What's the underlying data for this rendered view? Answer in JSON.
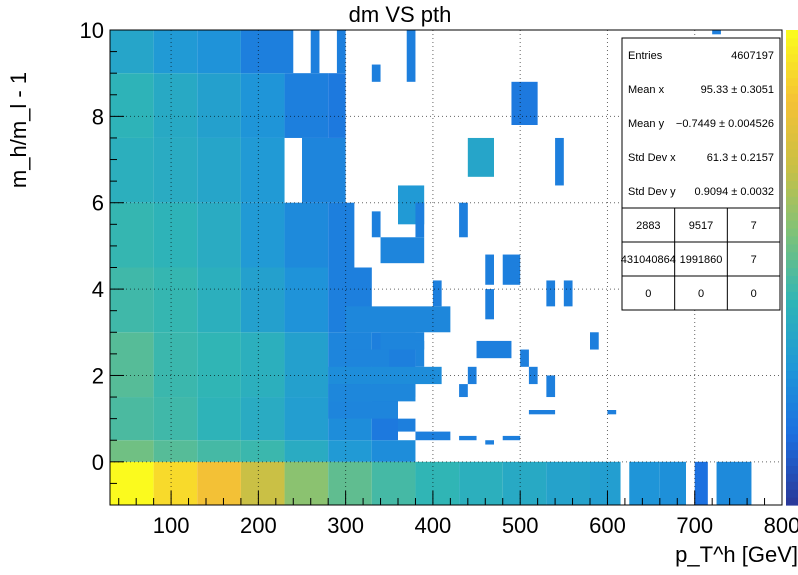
{
  "chart_data": {
    "type": "heatmap",
    "title": "dm VS pth",
    "xlabel": "p_T^h [GeV]",
    "ylabel": "m_h/m_l - 1",
    "xlim": [
      30,
      800
    ],
    "ylim": [
      -1,
      10
    ],
    "x_ticks": [
      100,
      200,
      300,
      400,
      500,
      600,
      700,
      800
    ],
    "y_ticks": [
      0,
      2,
      4,
      6,
      8,
      10
    ],
    "grid": true,
    "colorbar": "right",
    "colormap": [
      "#2a3a9b",
      "#1c6fe0",
      "#1f97d8",
      "#2fb5b6",
      "#7cc27a",
      "#c8c046",
      "#f5c135",
      "#fbfa1e"
    ],
    "cells": [
      [
        30,
        -1,
        80,
        0,
        1.0
      ],
      [
        80,
        -1,
        130,
        0,
        0.92
      ],
      [
        130,
        -1,
        180,
        0,
        0.85
      ],
      [
        180,
        -1,
        230,
        0,
        0.72
      ],
      [
        230,
        -1,
        280,
        0,
        0.6
      ],
      [
        280,
        -1,
        330,
        0,
        0.52
      ],
      [
        330,
        -1,
        380,
        0,
        0.47
      ],
      [
        380,
        -1,
        430,
        0,
        0.43
      ],
      [
        430,
        -1,
        480,
        0,
        0.4
      ],
      [
        480,
        -1,
        530,
        0,
        0.37
      ],
      [
        530,
        -1,
        580,
        0,
        0.34
      ],
      [
        580,
        -1,
        615,
        0,
        0.32
      ],
      [
        625,
        -1,
        660,
        0,
        0.28
      ],
      [
        660,
        -1,
        690,
        0,
        0.26
      ],
      [
        700,
        -1,
        715,
        0,
        0.15
      ],
      [
        725,
        -1,
        765,
        0,
        0.24
      ],
      [
        30,
        0,
        80,
        0.5,
        0.55
      ],
      [
        80,
        0,
        130,
        0.5,
        0.5
      ],
      [
        130,
        0,
        180,
        0.5,
        0.47
      ],
      [
        180,
        0,
        230,
        0.5,
        0.45
      ],
      [
        230,
        0,
        280,
        0.5,
        0.38
      ],
      [
        280,
        0,
        330,
        0.5,
        0.3
      ],
      [
        330,
        0,
        380,
        0.5,
        0.25
      ],
      [
        30,
        0.5,
        80,
        1.5,
        0.48
      ],
      [
        80,
        0.5,
        130,
        1.5,
        0.46
      ],
      [
        130,
        0.5,
        180,
        1.5,
        0.42
      ],
      [
        180,
        0.5,
        230,
        1.5,
        0.38
      ],
      [
        230,
        0.5,
        280,
        1.5,
        0.32
      ],
      [
        280,
        0.5,
        330,
        1.5,
        0.25
      ],
      [
        330,
        0.5,
        360,
        1.5,
        0.18
      ],
      [
        30,
        1.5,
        80,
        3,
        0.5
      ],
      [
        80,
        1.5,
        130,
        3,
        0.45
      ],
      [
        130,
        1.5,
        180,
        3,
        0.43
      ],
      [
        180,
        1.5,
        230,
        3,
        0.4
      ],
      [
        230,
        1.5,
        280,
        3,
        0.33
      ],
      [
        280,
        1.5,
        330,
        3,
        0.22
      ],
      [
        330,
        1.5,
        380,
        3,
        0.2
      ],
      [
        30,
        3,
        80,
        4.5,
        0.46
      ],
      [
        80,
        3,
        130,
        4.5,
        0.44
      ],
      [
        130,
        3,
        180,
        4.5,
        0.4
      ],
      [
        180,
        3,
        230,
        4.5,
        0.33
      ],
      [
        230,
        3,
        280,
        4.5,
        0.27
      ],
      [
        280,
        3,
        330,
        4.5,
        0.2
      ],
      [
        30,
        4.5,
        80,
        6,
        0.44
      ],
      [
        80,
        4.5,
        130,
        6,
        0.42
      ],
      [
        130,
        4.5,
        180,
        6,
        0.38
      ],
      [
        180,
        4.5,
        230,
        6,
        0.3
      ],
      [
        230,
        4.5,
        280,
        6,
        0.24
      ],
      [
        280,
        4.5,
        310,
        6,
        0.2
      ],
      [
        30,
        6,
        80,
        7.5,
        0.4
      ],
      [
        80,
        6,
        130,
        7.5,
        0.38
      ],
      [
        130,
        6,
        180,
        7.5,
        0.35
      ],
      [
        180,
        6,
        230,
        7.5,
        0.3
      ],
      [
        250,
        6,
        300,
        7.5,
        0.22
      ],
      [
        30,
        7.5,
        80,
        9,
        0.42
      ],
      [
        80,
        7.5,
        130,
        9,
        0.37
      ],
      [
        130,
        7.5,
        180,
        9,
        0.33
      ],
      [
        180,
        7.5,
        230,
        9,
        0.28
      ],
      [
        230,
        7.5,
        280,
        9,
        0.2
      ],
      [
        280,
        7.5,
        300,
        9,
        0.18
      ],
      [
        30,
        9,
        80,
        10,
        0.35
      ],
      [
        80,
        9,
        130,
        10,
        0.3
      ],
      [
        130,
        9,
        180,
        10,
        0.27
      ],
      [
        180,
        9,
        240,
        10,
        0.2
      ],
      [
        260,
        9,
        270,
        10,
        0.2
      ],
      [
        290,
        9,
        300,
        10,
        0.2
      ],
      [
        370,
        8.8,
        380,
        10,
        0.2
      ],
      [
        330,
        8.8,
        340,
        9.2,
        0.2
      ],
      [
        490,
        7.8,
        520,
        8.8,
        0.18
      ],
      [
        440,
        6.6,
        470,
        7.5,
        0.35
      ],
      [
        540,
        6.4,
        550,
        7.5,
        0.2
      ],
      [
        360,
        5.5,
        390,
        6.4,
        0.3
      ],
      [
        380,
        5.2,
        390,
        6,
        0.2
      ],
      [
        430,
        5.2,
        440,
        6,
        0.2
      ],
      [
        330,
        5.2,
        340,
        5.8,
        0.2
      ],
      [
        340,
        4.6,
        390,
        5.2,
        0.22
      ],
      [
        460,
        4.1,
        470,
        4.8,
        0.2
      ],
      [
        480,
        4.1,
        500,
        4.8,
        0.2
      ],
      [
        530,
        3.6,
        540,
        4.2,
        0.2
      ],
      [
        550,
        3.6,
        560,
        4.2,
        0.2
      ],
      [
        400,
        3.6,
        410,
        4.2,
        0.2
      ],
      [
        460,
        3.3,
        470,
        4,
        0.2
      ],
      [
        300,
        3,
        420,
        3.6,
        0.23
      ],
      [
        340,
        2.6,
        390,
        3,
        0.22
      ],
      [
        580,
        2.6,
        590,
        3,
        0.2
      ],
      [
        300,
        2.2,
        350,
        2.6,
        0.22
      ],
      [
        380,
        2.2,
        390,
        2.8,
        0.22
      ],
      [
        450,
        2.4,
        490,
        2.8,
        0.2
      ],
      [
        500,
        2.2,
        510,
        2.6,
        0.2
      ],
      [
        280,
        1.8,
        410,
        2.2,
        0.25
      ],
      [
        440,
        1.8,
        450,
        2.2,
        0.2
      ],
      [
        510,
        1.8,
        520,
        2.2,
        0.2
      ],
      [
        530,
        1.5,
        540,
        2,
        0.2
      ],
      [
        280,
        1.4,
        380,
        1.8,
        0.23
      ],
      [
        430,
        1.5,
        440,
        1.8,
        0.2
      ],
      [
        280,
        1,
        360,
        1.4,
        0.22
      ],
      [
        360,
        0.7,
        380,
        1,
        0.2
      ],
      [
        510,
        1.1,
        540,
        1.2,
        0.2
      ],
      [
        600,
        1.1,
        610,
        1.2,
        0.2
      ],
      [
        380,
        0.5,
        420,
        0.7,
        0.2
      ],
      [
        430,
        0.5,
        450,
        0.6,
        0.2
      ],
      [
        460,
        0.4,
        470,
        0.5,
        0.2
      ],
      [
        480,
        0.5,
        500,
        0.6,
        0.2
      ],
      [
        720,
        9.9,
        730,
        10,
        0.2
      ]
    ],
    "stats_box": {
      "rows": [
        {
          "label": "Entries",
          "value": "4607197"
        },
        {
          "label": "Mean x",
          "value": "95.33 ± 0.3051"
        },
        {
          "label": "Mean y",
          "value": "−0.7449 ± 0.004526"
        },
        {
          "label": "Std Dev x",
          "value": "61.3 ± 0.2157"
        },
        {
          "label": "Std Dev y",
          "value": "0.9094 ± 0.0032"
        }
      ],
      "grid": [
        [
          "2883",
          "9517",
          "7"
        ],
        [
          "431040864",
          "1991860",
          "7"
        ],
        [
          "0",
          "0",
          "0"
        ]
      ]
    }
  }
}
